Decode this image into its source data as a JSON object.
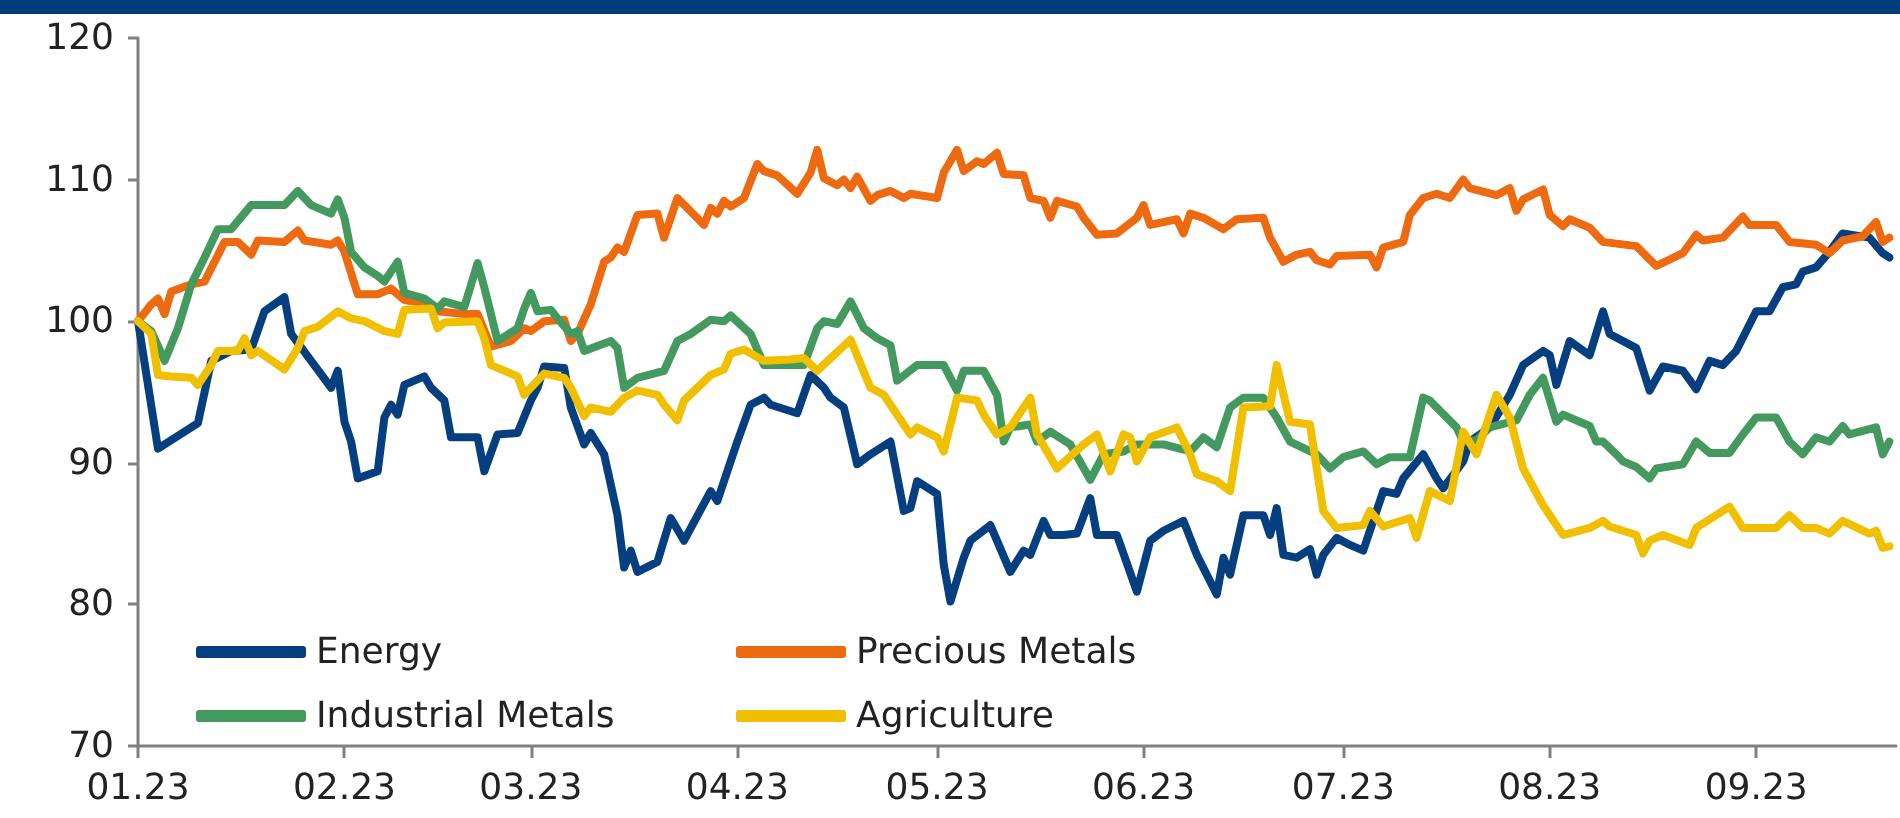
{
  "chart_data": {
    "type": "line",
    "xlim": [
      "2023-01-01",
      "2023-09-22"
    ],
    "xticks": [
      {
        "value": "2023-01-01",
        "label": "01.23"
      },
      {
        "value": "2023-02-01",
        "label": "02.23"
      },
      {
        "value": "2023-03-01",
        "label": "03.23"
      },
      {
        "value": "2023-04-01",
        "label": "04.23"
      },
      {
        "value": "2023-05-01",
        "label": "05.23"
      },
      {
        "value": "2023-06-01",
        "label": "06.23"
      },
      {
        "value": "2023-07-01",
        "label": "07.23"
      },
      {
        "value": "2023-08-01",
        "label": "08.23"
      },
      {
        "value": "2023-09-01",
        "label": "09.23"
      }
    ],
    "ylim": [
      70,
      120
    ],
    "yticks": [
      70,
      80,
      90,
      100,
      110,
      120
    ],
    "legend": "bottom left",
    "series": [
      {
        "name": "Energy",
        "color": "#063f80",
        "x": [
          "2023-01-01",
          "2023-01-04",
          "2023-01-10",
          "2023-01-12",
          "2023-01-15",
          "2023-01-18",
          "2023-01-20",
          "2023-01-23",
          "2023-01-24",
          "2023-01-27",
          "2023-01-30",
          "2023-01-31",
          "2023-02-01",
          "2023-02-02",
          "2023-02-03",
          "2023-02-06",
          "2023-02-07",
          "2023-02-08",
          "2023-02-09",
          "2023-02-10",
          "2023-02-13",
          "2023-02-14",
          "2023-02-16",
          "2023-02-17",
          "2023-02-21",
          "2023-02-22",
          "2023-02-24",
          "2023-02-27",
          "2023-03-01",
          "2023-03-02",
          "2023-03-03",
          "2023-03-06",
          "2023-03-07",
          "2023-03-09",
          "2023-03-10",
          "2023-03-12",
          "2023-03-14",
          "2023-03-15",
          "2023-03-16",
          "2023-03-17",
          "2023-03-20",
          "2023-03-22",
          "2023-03-24",
          "2023-03-28",
          "2023-03-29",
          "2023-04-01",
          "2023-04-03",
          "2023-04-05",
          "2023-04-06",
          "2023-04-10",
          "2023-04-12",
          "2023-04-14",
          "2023-04-15",
          "2023-04-17",
          "2023-04-19",
          "2023-04-21",
          "2023-04-24",
          "2023-04-26",
          "2023-04-27",
          "2023-04-28",
          "2023-05-01",
          "2023-05-02",
          "2023-05-03",
          "2023-05-05",
          "2023-05-06",
          "2023-05-09",
          "2023-05-12",
          "2023-05-14",
          "2023-05-15",
          "2023-05-17",
          "2023-05-18",
          "2023-05-20",
          "2023-05-22",
          "2023-05-24",
          "2023-05-25",
          "2023-05-28",
          "2023-05-31",
          "2023-06-02",
          "2023-06-04",
          "2023-06-07",
          "2023-06-09",
          "2023-06-12",
          "2023-06-13",
          "2023-06-14",
          "2023-06-16",
          "2023-06-19",
          "2023-06-20",
          "2023-06-21",
          "2023-06-22",
          "2023-06-24",
          "2023-06-26",
          "2023-06-27",
          "2023-06-28",
          "2023-06-30",
          "2023-07-02",
          "2023-07-04",
          "2023-07-07",
          "2023-07-09",
          "2023-07-10",
          "2023-07-13",
          "2023-07-15",
          "2023-07-16",
          "2023-07-19",
          "2023-07-20",
          "2023-07-23",
          "2023-07-26",
          "2023-07-28",
          "2023-07-31",
          "2023-08-01",
          "2023-08-02",
          "2023-08-04",
          "2023-08-07",
          "2023-08-09",
          "2023-08-10",
          "2023-08-14",
          "2023-08-16",
          "2023-08-18",
          "2023-08-21",
          "2023-08-23",
          "2023-08-25",
          "2023-08-27",
          "2023-08-29",
          "2023-09-01",
          "2023-09-03",
          "2023-09-05",
          "2023-09-07",
          "2023-09-08",
          "2023-09-10",
          "2023-09-12",
          "2023-09-14",
          "2023-09-18",
          "2023-09-20",
          "2023-09-21"
        ],
        "values": [
          100,
          91,
          92.8,
          97.2,
          97.9,
          98,
          100.7,
          101.7,
          99.1,
          97.2,
          95.3,
          96.5,
          92.9,
          91.5,
          88.9,
          89.4,
          93.2,
          94.1,
          93.4,
          95.5,
          96.1,
          95.3,
          94.4,
          91.8,
          91.8,
          89.4,
          92,
          92.1,
          94.4,
          95.3,
          96.8,
          96.7,
          93.9,
          91.3,
          92.1,
          90.6,
          86.3,
          82.6,
          83.8,
          82.3,
          83,
          86.1,
          84.5,
          88,
          87.3,
          91.5,
          94.1,
          94.6,
          94.1,
          93.5,
          96.2,
          95.3,
          94.6,
          93.9,
          89.9,
          90.6,
          91.5,
          86.6,
          86.8,
          88.7,
          87.8,
          82.8,
          80.2,
          83.3,
          84.5,
          85.6,
          82.3,
          83.8,
          83.5,
          85.9,
          84.9,
          84.9,
          85,
          87.5,
          84.9,
          84.9,
          80.9,
          84.5,
          85.2,
          85.9,
          83.5,
          80.7,
          83.3,
          82.1,
          86.3,
          86.3,
          84.9,
          86.8,
          83.5,
          83.3,
          83.9,
          82.1,
          83.5,
          84.7,
          84.2,
          83.8,
          88,
          87.8,
          88.9,
          90.6,
          88.9,
          88.2,
          90.1,
          91.5,
          92.5,
          94.8,
          96.9,
          97.9,
          97.6,
          95.5,
          98.6,
          97.6,
          100.7,
          99.1,
          98.1,
          95.1,
          96.8,
          96.5,
          95.2,
          97.2,
          96.9,
          97.9,
          100.7,
          100.7,
          102.4,
          102.6,
          103.5,
          103.8,
          104.9,
          106.2,
          105.9,
          104.8,
          104.5
        ]
      },
      {
        "name": "Precious Metals",
        "color": "#ee6a10",
        "x": [
          "2023-01-01",
          "2023-01-03",
          "2023-01-04",
          "2023-01-05",
          "2023-01-06",
          "2023-01-09",
          "2023-01-11",
          "2023-01-14",
          "2023-01-16",
          "2023-01-18",
          "2023-01-19",
          "2023-01-23",
          "2023-01-25",
          "2023-01-26",
          "2023-01-30",
          "2023-01-31",
          "2023-02-01",
          "2023-02-03",
          "2023-02-06",
          "2023-02-08",
          "2023-02-10",
          "2023-02-14",
          "2023-02-15",
          "2023-02-19",
          "2023-02-21",
          "2023-02-23",
          "2023-02-26",
          "2023-02-28",
          "2023-03-01",
          "2023-03-03",
          "2023-03-06",
          "2023-03-07",
          "2023-03-08",
          "2023-03-10",
          "2023-03-12",
          "2023-03-13",
          "2023-03-14",
          "2023-03-15",
          "2023-03-17",
          "2023-03-20",
          "2023-03-21",
          "2023-03-23",
          "2023-03-27",
          "2023-03-28",
          "2023-03-29",
          "2023-03-30",
          "2023-03-31",
          "2023-04-02",
          "2023-04-04",
          "2023-04-05",
          "2023-04-07",
          "2023-04-10",
          "2023-04-12",
          "2023-04-13",
          "2023-04-14",
          "2023-04-16",
          "2023-04-17",
          "2023-04-18",
          "2023-04-19",
          "2023-04-21",
          "2023-04-22",
          "2023-04-24",
          "2023-04-26",
          "2023-04-27",
          "2023-05-01",
          "2023-05-02",
          "2023-05-04",
          "2023-05-05",
          "2023-05-07",
          "2023-05-08",
          "2023-05-10",
          "2023-05-11",
          "2023-05-14",
          "2023-05-15",
          "2023-05-17",
          "2023-05-18",
          "2023-05-19",
          "2023-05-22",
          "2023-05-23",
          "2023-05-25",
          "2023-05-28",
          "2023-05-31",
          "2023-06-01",
          "2023-06-02",
          "2023-06-06",
          "2023-06-07",
          "2023-06-08",
          "2023-06-10",
          "2023-06-13",
          "2023-06-15",
          "2023-06-19",
          "2023-06-20",
          "2023-06-22",
          "2023-06-24",
          "2023-06-26",
          "2023-06-27",
          "2023-06-29",
          "2023-06-30",
          "2023-07-05",
          "2023-07-06",
          "2023-07-07",
          "2023-07-10",
          "2023-07-11",
          "2023-07-13",
          "2023-07-15",
          "2023-07-17",
          "2023-07-19",
          "2023-07-20",
          "2023-07-24",
          "2023-07-26",
          "2023-07-27",
          "2023-07-28",
          "2023-07-31",
          "2023-08-01",
          "2023-08-03",
          "2023-08-04",
          "2023-08-07",
          "2023-08-09",
          "2023-08-14",
          "2023-08-17",
          "2023-08-21",
          "2023-08-23",
          "2023-08-24",
          "2023-08-27",
          "2023-08-30",
          "2023-08-31",
          "2023-09-04",
          "2023-09-06",
          "2023-09-10",
          "2023-09-12",
          "2023-09-14",
          "2023-09-17",
          "2023-09-19",
          "2023-09-20",
          "2023-09-21"
        ],
        "values": [
          100,
          101.2,
          101.6,
          100.5,
          102.1,
          102.6,
          102.8,
          105.6,
          105.6,
          104.7,
          105.7,
          105.6,
          106.4,
          105.7,
          105.4,
          105.7,
          104.9,
          101.9,
          101.9,
          102.3,
          101.5,
          101.2,
          100.7,
          100.5,
          100.5,
          98.2,
          98.6,
          99.5,
          99.3,
          100,
          100.1,
          98.6,
          99.1,
          101.2,
          104.2,
          104.5,
          105.2,
          104.9,
          107.5,
          107.6,
          105.9,
          108.7,
          106.8,
          108,
          107.6,
          108.5,
          108.1,
          108.7,
          111.1,
          110.6,
          110.3,
          109,
          110.5,
          112.1,
          110.1,
          109.6,
          110,
          109.4,
          110.2,
          108.5,
          108.9,
          109.2,
          108.7,
          109,
          108.7,
          110.5,
          112.1,
          110.6,
          111.3,
          111.1,
          111.9,
          110.4,
          110.3,
          108.7,
          108.5,
          107.3,
          108.5,
          108.1,
          107.3,
          106.1,
          106.2,
          107.3,
          108.2,
          106.8,
          107.2,
          106.2,
          107.6,
          107.3,
          106.5,
          107.2,
          107.3,
          105.9,
          104.2,
          104.7,
          104.9,
          104.3,
          104,
          104.6,
          104.7,
          103.8,
          105.2,
          105.6,
          107.5,
          108.7,
          109,
          108.7,
          110,
          109.4,
          108.9,
          109.4,
          107.8,
          108.6,
          109.3,
          107.5,
          106.7,
          107.2,
          106.6,
          105.6,
          105.3,
          103.9,
          104.8,
          106.1,
          105.7,
          105.9,
          107.4,
          106.8,
          106.8,
          105.6,
          105.4,
          104.8,
          105.7,
          106,
          107,
          105.6,
          105.9
        ]
      },
      {
        "name": "Industrial Metals",
        "color": "#43995e",
        "x": [
          "2023-01-01",
          "2023-01-03",
          "2023-01-05",
          "2023-01-07",
          "2023-01-09",
          "2023-01-11",
          "2023-01-13",
          "2023-01-15",
          "2023-01-18",
          "2023-01-23",
          "2023-01-25",
          "2023-01-27",
          "2023-01-30",
          "2023-01-31",
          "2023-02-01",
          "2023-02-02",
          "2023-02-04",
          "2023-02-06",
          "2023-02-07",
          "2023-02-09",
          "2023-02-10",
          "2023-02-13",
          "2023-02-15",
          "2023-02-16",
          "2023-02-19",
          "2023-02-21",
          "2023-02-22",
          "2023-02-24",
          "2023-02-27",
          "2023-02-28",
          "2023-03-01",
          "2023-03-02",
          "2023-03-04",
          "2023-03-05",
          "2023-03-07",
          "2023-03-08",
          "2023-03-09",
          "2023-03-13",
          "2023-03-14",
          "2023-03-15",
          "2023-03-17",
          "2023-03-21",
          "2023-03-23",
          "2023-03-25",
          "2023-03-28",
          "2023-03-30",
          "2023-03-31",
          "2023-04-03",
          "2023-04-05",
          "2023-04-08",
          "2023-04-11",
          "2023-04-13",
          "2023-04-14",
          "2023-04-16",
          "2023-04-18",
          "2023-04-20",
          "2023-04-22",
          "2023-04-24",
          "2023-04-25",
          "2023-04-28",
          "2023-05-02",
          "2023-05-04",
          "2023-05-05",
          "2023-05-08",
          "2023-05-10",
          "2023-05-11",
          "2023-05-12",
          "2023-05-15",
          "2023-05-16",
          "2023-05-18",
          "2023-05-21",
          "2023-05-24",
          "2023-05-26",
          "2023-05-29",
          "2023-05-31",
          "2023-06-04",
          "2023-06-08",
          "2023-06-10",
          "2023-06-12",
          "2023-06-14",
          "2023-06-16",
          "2023-06-19",
          "2023-06-21",
          "2023-06-23",
          "2023-06-27",
          "2023-06-29",
          "2023-07-01",
          "2023-07-04",
          "2023-07-06",
          "2023-07-08",
          "2023-07-11",
          "2023-07-13",
          "2023-07-14",
          "2023-07-18",
          "2023-07-19",
          "2023-07-21",
          "2023-07-23",
          "2023-07-27",
          "2023-07-29",
          "2023-07-31",
          "2023-08-02",
          "2023-08-03",
          "2023-08-07",
          "2023-08-08",
          "2023-08-09",
          "2023-08-11",
          "2023-08-12",
          "2023-08-14",
          "2023-08-16",
          "2023-08-17",
          "2023-08-21",
          "2023-08-23",
          "2023-08-25",
          "2023-08-28",
          "2023-08-30",
          "2023-09-01",
          "2023-09-04",
          "2023-09-06",
          "2023-09-08",
          "2023-09-10",
          "2023-09-12",
          "2023-09-14",
          "2023-09-15",
          "2023-09-19",
          "2023-09-20",
          "2023-09-21"
        ],
        "values": [
          100,
          99.3,
          97.2,
          99.5,
          102.6,
          104.5,
          106.5,
          106.5,
          108.2,
          108.2,
          109.2,
          108.2,
          107.6,
          108.6,
          107.3,
          104.9,
          103.8,
          103.2,
          102.8,
          104.2,
          102,
          101.6,
          100.9,
          101.4,
          101,
          104.1,
          102.4,
          98.6,
          99.5,
          100.9,
          102,
          100.7,
          100.8,
          100.2,
          99.1,
          99.3,
          97.9,
          98.6,
          98.1,
          95.3,
          96,
          96.5,
          98.6,
          99.1,
          100.1,
          100,
          100.4,
          99.1,
          96.9,
          96.9,
          96.9,
          99.5,
          100,
          99.8,
          101.4,
          99.5,
          98.8,
          98.3,
          95.8,
          96.9,
          96.9,
          95.1,
          96.5,
          96.5,
          94.8,
          91.5,
          92.5,
          92.7,
          91.5,
          92.2,
          91.3,
          88.8,
          90.6,
          90.8,
          91.3,
          91.3,
          90.8,
          91.8,
          91.1,
          93.9,
          94.6,
          94.6,
          93.2,
          91.5,
          90.6,
          89.6,
          90.4,
          90.8,
          89.9,
          90.4,
          90.4,
          94.6,
          94.4,
          92.5,
          91.5,
          91.6,
          92.5,
          93,
          94.8,
          96,
          92.9,
          93.4,
          92.6,
          91.5,
          91.5,
          90.6,
          90.1,
          89.7,
          88.9,
          89.6,
          89.9,
          91.5,
          90.7,
          90.7,
          92,
          93.2,
          93.2,
          91.5,
          90.6,
          91.8,
          91.5,
          92.6,
          92,
          92.5,
          90.6,
          91.5
        ]
      },
      {
        "name": "Agriculture",
        "color": "#efbf00",
        "x": [
          "2023-01-01",
          "2023-01-03",
          "2023-01-04",
          "2023-01-06",
          "2023-01-09",
          "2023-01-10",
          "2023-01-12",
          "2023-01-13",
          "2023-01-16",
          "2023-01-17",
          "2023-01-18",
          "2023-01-19",
          "2023-01-23",
          "2023-01-25",
          "2023-01-26",
          "2023-01-28",
          "2023-01-31",
          "2023-02-02",
          "2023-02-04",
          "2023-02-07",
          "2023-02-09",
          "2023-02-10",
          "2023-02-14",
          "2023-02-15",
          "2023-02-16",
          "2023-02-21",
          "2023-02-22",
          "2023-02-23",
          "2023-02-27",
          "2023-02-28",
          "2023-03-03",
          "2023-03-06",
          "2023-03-07",
          "2023-03-09",
          "2023-03-10",
          "2023-03-13",
          "2023-03-15",
          "2023-03-17",
          "2023-03-20",
          "2023-03-21",
          "2023-03-23",
          "2023-03-24",
          "2023-03-26",
          "2023-03-28",
          "2023-03-30",
          "2023-03-31",
          "2023-04-02",
          "2023-04-05",
          "2023-04-09",
          "2023-04-11",
          "2023-04-13",
          "2023-04-18",
          "2023-04-21",
          "2023-04-23",
          "2023-04-25",
          "2023-04-27",
          "2023-04-28",
          "2023-05-01",
          "2023-05-02",
          "2023-05-04",
          "2023-05-07",
          "2023-05-08",
          "2023-05-10",
          "2023-05-12",
          "2023-05-15",
          "2023-05-16",
          "2023-05-19",
          "2023-05-23",
          "2023-05-25",
          "2023-05-27",
          "2023-05-29",
          "2023-05-30",
          "2023-05-31",
          "2023-06-02",
          "2023-06-06",
          "2023-06-08",
          "2023-06-09",
          "2023-06-12",
          "2023-06-14",
          "2023-06-16",
          "2023-06-20",
          "2023-06-21",
          "2023-06-23",
          "2023-06-26",
          "2023-06-28",
          "2023-06-30",
          "2023-07-04",
          "2023-07-05",
          "2023-07-07",
          "2023-07-11",
          "2023-07-12",
          "2023-07-14",
          "2023-07-17",
          "2023-07-19",
          "2023-07-21",
          "2023-07-24",
          "2023-07-26",
          "2023-07-28",
          "2023-07-31",
          "2023-08-03",
          "2023-08-07",
          "2023-08-09",
          "2023-08-10",
          "2023-08-14",
          "2023-08-15",
          "2023-08-16",
          "2023-08-18",
          "2023-08-22",
          "2023-08-23",
          "2023-08-28",
          "2023-08-30",
          "2023-09-04",
          "2023-09-06",
          "2023-09-08",
          "2023-09-10",
          "2023-09-12",
          "2023-09-14",
          "2023-09-18",
          "2023-09-19",
          "2023-09-20",
          "2023-09-21"
        ],
        "values": [
          100,
          99.1,
          96.2,
          96.1,
          96,
          95.5,
          96.9,
          97.9,
          97.9,
          98.8,
          97.6,
          97.9,
          96.6,
          98.1,
          99.3,
          99.6,
          100.7,
          100.2,
          100,
          99.3,
          99.1,
          100.8,
          100.9,
          99.5,
          99.9,
          100,
          98.8,
          96.9,
          96.1,
          94.8,
          96.3,
          96,
          95.3,
          93.3,
          93.9,
          93.6,
          94.6,
          95.1,
          94.8,
          94.1,
          93,
          94.4,
          95.3,
          96.2,
          96.6,
          97.7,
          98,
          97.2,
          97.3,
          97.4,
          96.5,
          98.7,
          95.3,
          94.8,
          93.4,
          92,
          92.5,
          91.8,
          90.8,
          94.6,
          94.4,
          93.4,
          92,
          92.5,
          94.6,
          92,
          89.6,
          91.3,
          92,
          89.4,
          92,
          91.8,
          90.1,
          91.8,
          92.5,
          90.6,
          89.2,
          88.7,
          88,
          93.9,
          94,
          96.9,
          92.9,
          92.7,
          86.6,
          85.4,
          85.6,
          86.6,
          85.5,
          86.1,
          84.7,
          88,
          87.3,
          92.2,
          90.6,
          94.8,
          93.2,
          89.6,
          87,
          84.9,
          85.4,
          85.9,
          85.5,
          84.9,
          83.6,
          84.5,
          84.9,
          84.2,
          85.4,
          86.9,
          85.4,
          85.4,
          86.3,
          85.4,
          85.4,
          85,
          85.9,
          85,
          85.2,
          84,
          84.1
        ]
      }
    ]
  }
}
